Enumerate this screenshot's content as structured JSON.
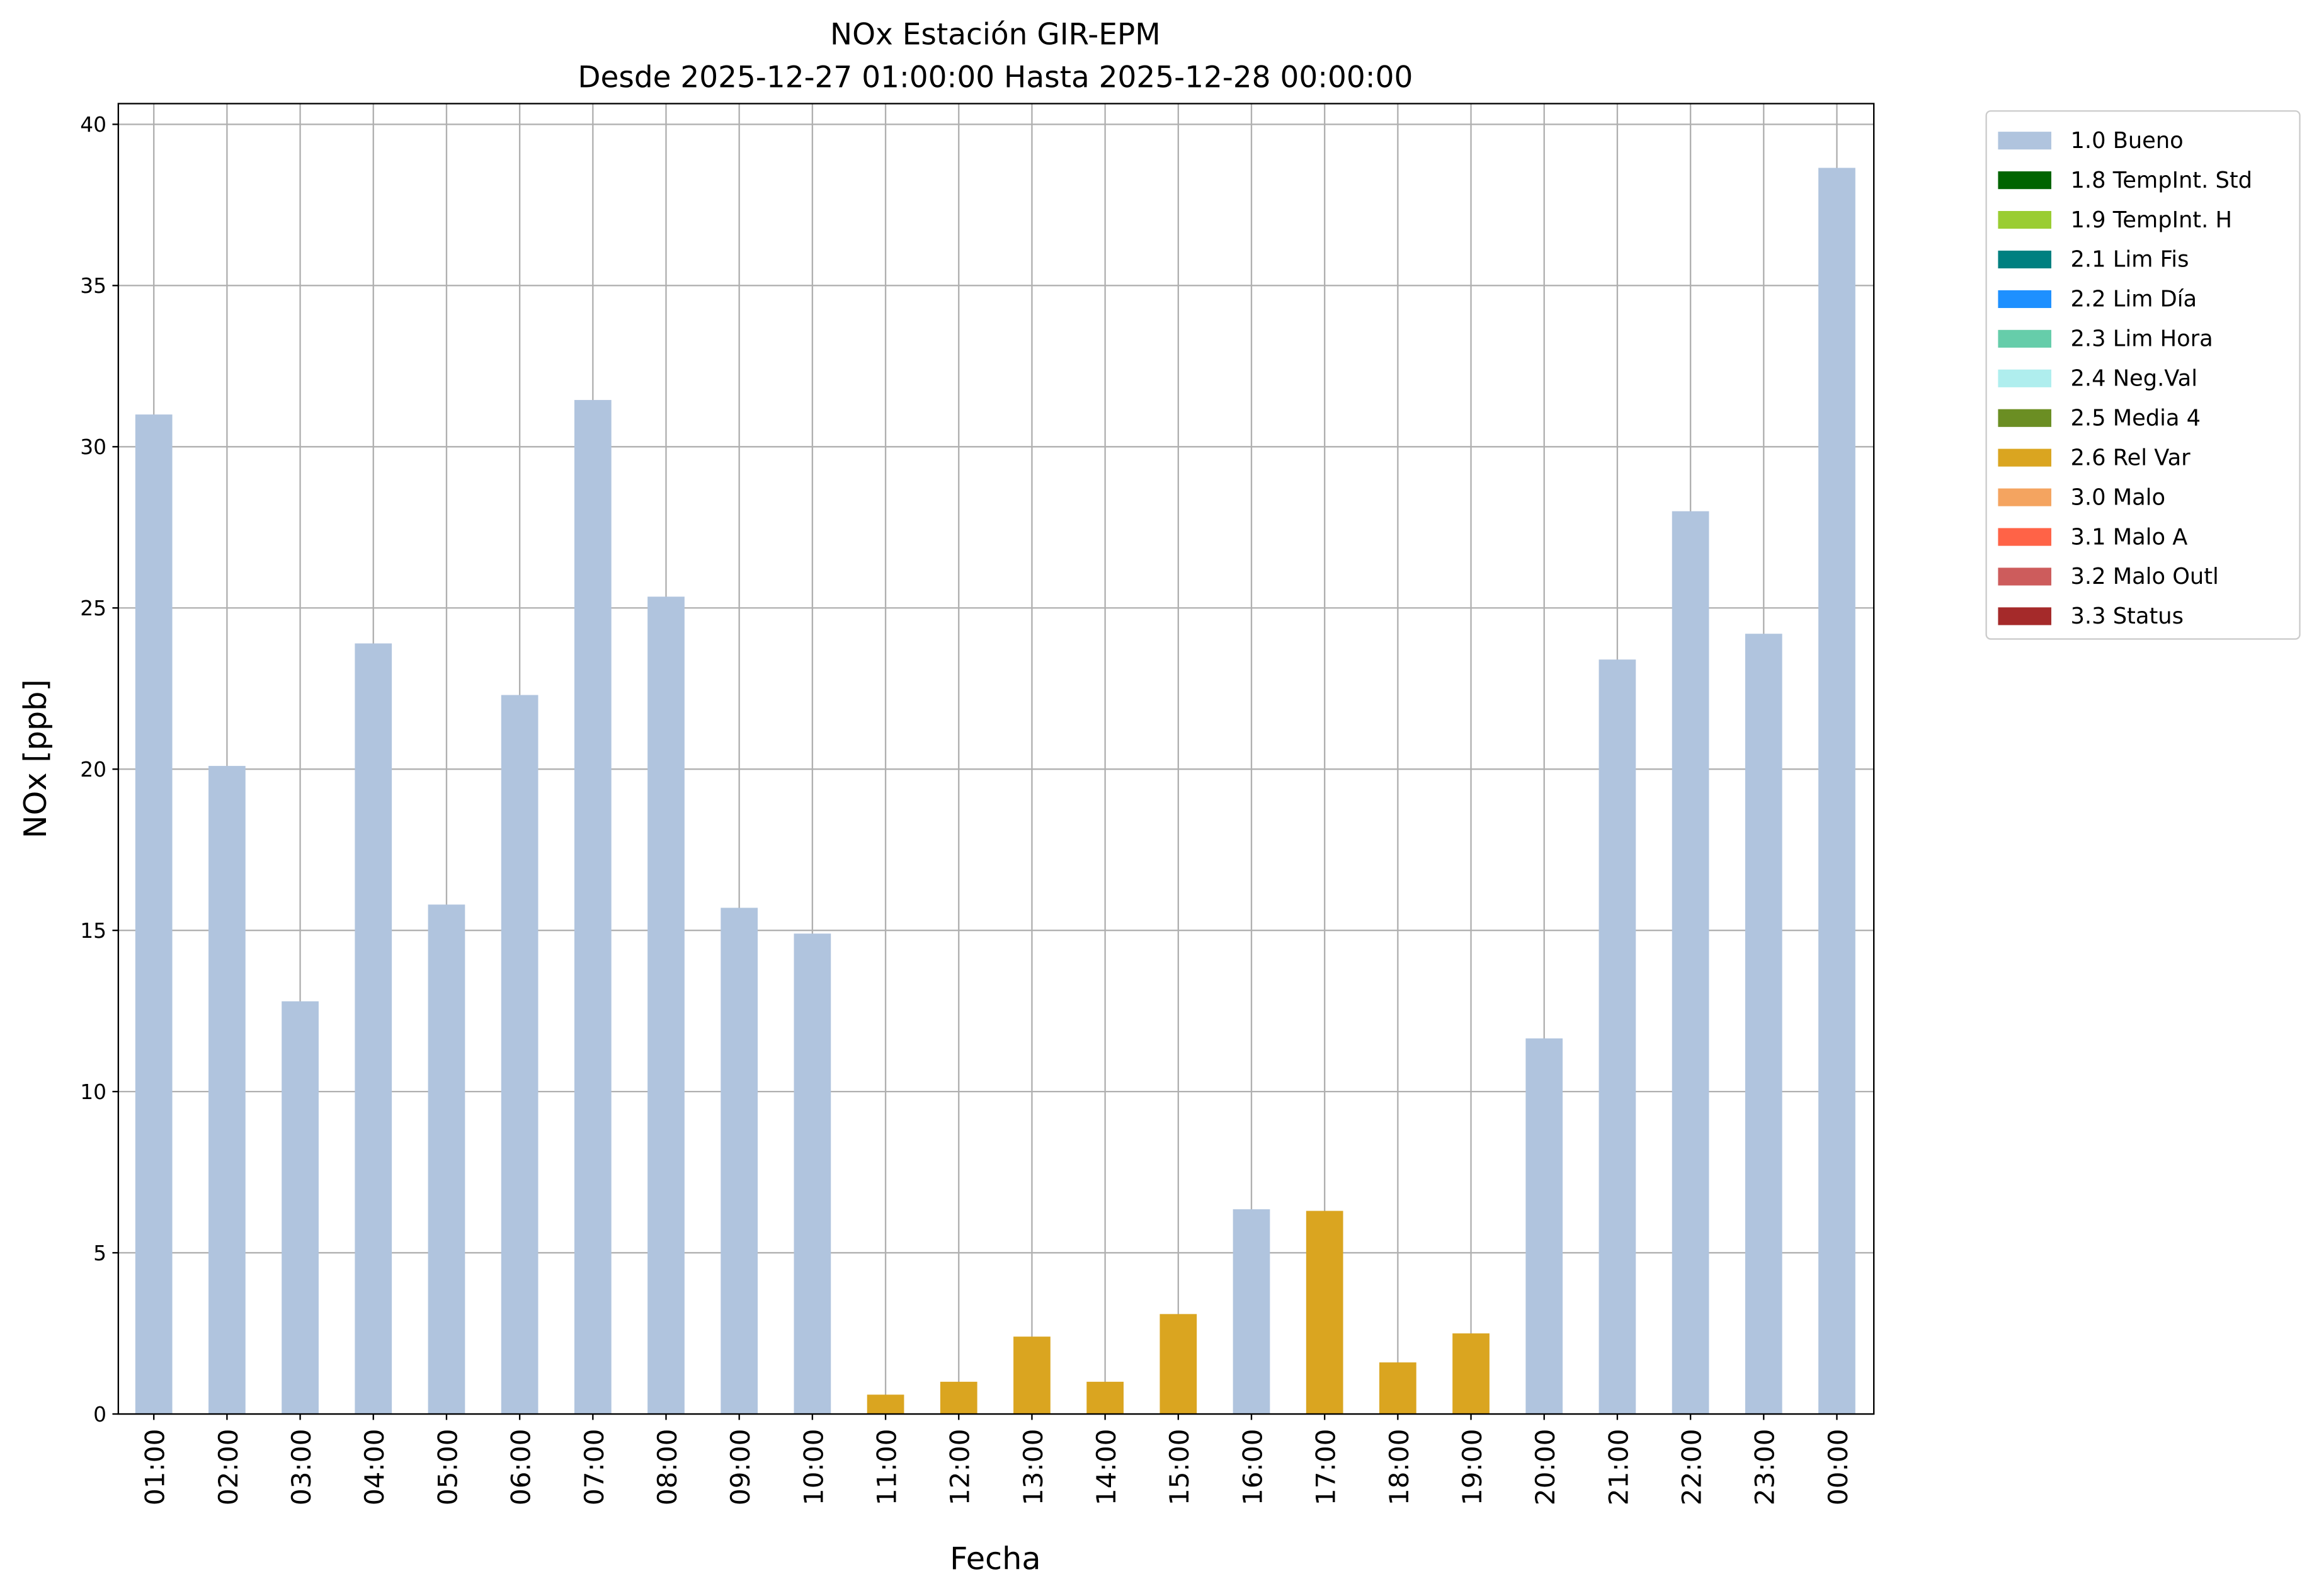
{
  "chart_data": {
    "type": "bar",
    "title": "NOx Estación GIR-EPM",
    "subtitle": "Desde 2025-12-27 01:00:00 Hasta 2025-12-28 00:00:00",
    "xlabel": "Fecha",
    "ylabel": "NOx [ppb]",
    "ylim": [
      0,
      40.6
    ],
    "yticks": [
      0,
      5,
      10,
      15,
      20,
      25,
      30,
      35,
      40
    ],
    "grid": true,
    "legend_position": "outside-top-right",
    "categories": [
      "01:00",
      "02:00",
      "03:00",
      "04:00",
      "05:00",
      "06:00",
      "07:00",
      "08:00",
      "09:00",
      "10:00",
      "11:00",
      "12:00",
      "13:00",
      "14:00",
      "15:00",
      "16:00",
      "17:00",
      "18:00",
      "19:00",
      "20:00",
      "21:00",
      "22:00",
      "23:00",
      "00:00"
    ],
    "values": [
      31.0,
      20.1,
      12.8,
      23.9,
      15.8,
      22.3,
      31.45,
      25.35,
      15.7,
      14.9,
      0.6,
      1.0,
      2.4,
      1.0,
      3.1,
      6.35,
      6.3,
      1.6,
      2.5,
      11.65,
      23.4,
      28.0,
      24.2,
      38.65
    ],
    "flags": [
      "1.0 Bueno",
      "1.0 Bueno",
      "1.0 Bueno",
      "1.0 Bueno",
      "1.0 Bueno",
      "1.0 Bueno",
      "1.0 Bueno",
      "1.0 Bueno",
      "1.0 Bueno",
      "1.0 Bueno",
      "2.6 Rel Var",
      "2.6 Rel Var",
      "2.6 Rel Var",
      "2.6 Rel Var",
      "2.6 Rel Var",
      "1.0 Bueno",
      "2.6 Rel Var",
      "2.6 Rel Var",
      "2.6 Rel Var",
      "1.0 Bueno",
      "1.0 Bueno",
      "1.0 Bueno",
      "1.0 Bueno",
      "1.0 Bueno"
    ],
    "legend": [
      {
        "label": "1.0 Bueno",
        "color": "#b0c4de"
      },
      {
        "label": "1.8 TempInt. Std",
        "color": "#006400"
      },
      {
        "label": "1.9 TempInt. H",
        "color": "#9acd32"
      },
      {
        "label": "2.1 Lim Fis",
        "color": "#008080"
      },
      {
        "label": "2.2 Lim Día",
        "color": "#1e90ff"
      },
      {
        "label": "2.3 Lim Hora",
        "color": "#66cdaa"
      },
      {
        "label": "2.4 Neg.Val",
        "color": "#afeeee"
      },
      {
        "label": "2.5 Media 4",
        "color": "#6b8e23"
      },
      {
        "label": "2.6 Rel Var",
        "color": "#daa520"
      },
      {
        "label": "3.0 Malo",
        "color": "#f4a460"
      },
      {
        "label": "3.1 Malo A",
        "color": "#ff6347"
      },
      {
        "label": "3.2 Malo Outl",
        "color": "#cd5c5c"
      },
      {
        "label": "3.3 Status",
        "color": "#a52a2a"
      }
    ]
  }
}
